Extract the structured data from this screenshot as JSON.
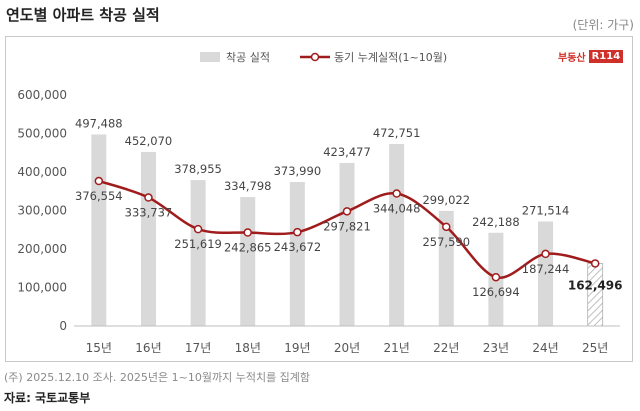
{
  "title": "연도별 아파트 착공 실적",
  "unit": "(단위: 가구)",
  "brand": {
    "text": "부동산",
    "box": "R114",
    "color": "#d0302a"
  },
  "note": "(주) 2025.12.10 조사. 2025년은 1~10월까지 누적치를 집계함",
  "source": "자료: 국토교통부",
  "chart_data": {
    "type": "bar",
    "categories": [
      "15년",
      "16년",
      "17년",
      "18년",
      "19년",
      "20년",
      "21년",
      "22년",
      "23년",
      "24년",
      "25년"
    ],
    "ylim": [
      0,
      600000
    ],
    "yticks": [
      "0",
      "100,000",
      "200,000",
      "300,000",
      "400,000",
      "500,000",
      "600,000"
    ],
    "grid": false,
    "legend_position": "top",
    "series": [
      {
        "name": "착공 실적",
        "type": "bar",
        "color": "#d9d9d9",
        "values": [
          497488,
          452070,
          378955,
          334798,
          373990,
          423477,
          472751,
          299022,
          242188,
          271514,
          162496
        ],
        "labels": [
          "497,488",
          "452,070",
          "378,955",
          "334,798",
          "373,990",
          "423,477",
          "472,751",
          "299,022",
          "242,188",
          "271,514",
          "162,496"
        ]
      },
      {
        "name": "동기 누계실적(1~10월)",
        "type": "line",
        "color": "#a01c1c",
        "values": [
          376554,
          333737,
          251619,
          242865,
          243672,
          297821,
          344048,
          257590,
          126694,
          187244,
          162496
        ],
        "labels": [
          "376,554",
          "333,737",
          "251,619",
          "242,865",
          "243,672",
          "297,821",
          "344,048",
          "257,590",
          "126,694",
          "187,244",
          ""
        ]
      }
    ]
  }
}
